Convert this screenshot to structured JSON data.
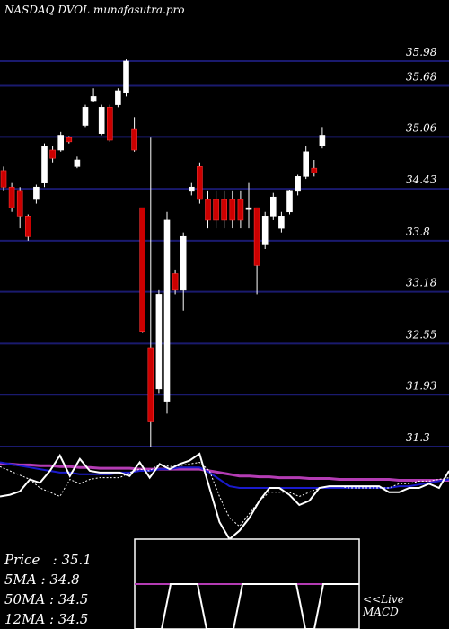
{
  "title": "NASDAQ DVOL munafasutra.pro",
  "colors": {
    "background": "#000000",
    "grid": "#1a1a6e",
    "up_candle": "#ffffff",
    "down_candle": "#cc0000",
    "wick": "#ffffff",
    "ma_short": "#1a1acc",
    "ma_long": "#b43cb4",
    "price_line": "#ffffff",
    "dotted": "#ffffff"
  },
  "chart_data": {
    "type": "candlestick",
    "y_ticks": [
      35.98,
      35.68,
      35.06,
      34.43,
      33.8,
      33.18,
      32.55,
      31.93,
      31.3
    ],
    "ylim": [
      31.3,
      36.0
    ],
    "candles": [
      {
        "o": 34.65,
        "c": 34.45,
        "h": 34.7,
        "l": 34.4
      },
      {
        "o": 34.45,
        "c": 34.2,
        "h": 34.5,
        "l": 34.15
      },
      {
        "o": 34.4,
        "c": 34.1,
        "h": 34.45,
        "l": 33.95
      },
      {
        "o": 34.1,
        "c": 33.85,
        "h": 34.12,
        "l": 33.8
      },
      {
        "o": 34.3,
        "c": 34.45,
        "h": 34.48,
        "l": 34.25
      },
      {
        "o": 34.5,
        "c": 34.95,
        "h": 34.98,
        "l": 34.45
      },
      {
        "o": 34.9,
        "c": 34.8,
        "h": 34.95,
        "l": 34.75
      },
      {
        "o": 34.9,
        "c": 35.08,
        "h": 35.12,
        "l": 34.88
      },
      {
        "o": 35.05,
        "c": 35.0,
        "h": 35.07,
        "l": 34.98
      },
      {
        "o": 34.7,
        "c": 34.78,
        "h": 34.82,
        "l": 34.68
      },
      {
        "o": 35.2,
        "c": 35.42,
        "h": 35.45,
        "l": 35.18
      },
      {
        "o": 35.5,
        "c": 35.55,
        "h": 35.65,
        "l": 35.48
      },
      {
        "o": 35.1,
        "c": 35.42,
        "h": 35.45,
        "l": 35.08
      },
      {
        "o": 35.42,
        "c": 35.02,
        "h": 35.45,
        "l": 35.0
      },
      {
        "o": 35.45,
        "c": 35.62,
        "h": 35.65,
        "l": 35.42
      },
      {
        "o": 35.6,
        "c": 35.98,
        "h": 36.0,
        "l": 35.55
      },
      {
        "o": 35.15,
        "c": 34.9,
        "h": 35.3,
        "l": 34.88
      },
      {
        "o": 34.2,
        "c": 32.7,
        "h": 34.2,
        "l": 32.68
      },
      {
        "o": 32.5,
        "c": 31.6,
        "h": 35.05,
        "l": 31.3
      },
      {
        "o": 32.0,
        "c": 33.15,
        "h": 33.2,
        "l": 31.95
      },
      {
        "o": 31.85,
        "c": 34.05,
        "h": 34.15,
        "l": 31.7
      },
      {
        "o": 33.4,
        "c": 33.2,
        "h": 33.45,
        "l": 33.15
      },
      {
        "o": 33.2,
        "c": 33.85,
        "h": 33.9,
        "l": 32.95
      },
      {
        "o": 34.4,
        "c": 34.45,
        "h": 34.5,
        "l": 34.35
      },
      {
        "o": 34.7,
        "c": 34.3,
        "h": 34.75,
        "l": 34.25
      },
      {
        "o": 34.3,
        "c": 34.05,
        "h": 34.4,
        "l": 33.95
      },
      {
        "o": 34.3,
        "c": 34.05,
        "h": 34.4,
        "l": 33.95
      },
      {
        "o": 34.3,
        "c": 34.05,
        "h": 34.4,
        "l": 33.95
      },
      {
        "o": 34.3,
        "c": 34.05,
        "h": 34.4,
        "l": 33.95
      },
      {
        "o": 34.3,
        "c": 34.05,
        "h": 34.4,
        "l": 33.95
      },
      {
        "o": 34.2,
        "c": 34.2,
        "h": 34.5,
        "l": 33.95
      },
      {
        "o": 34.2,
        "c": 33.5,
        "h": 34.2,
        "l": 33.15
      },
      {
        "o": 33.75,
        "c": 34.1,
        "h": 34.15,
        "l": 33.7
      },
      {
        "o": 34.1,
        "c": 34.33,
        "h": 34.38,
        "l": 34.05
      },
      {
        "o": 33.95,
        "c": 34.1,
        "h": 34.15,
        "l": 33.9
      },
      {
        "o": 34.15,
        "c": 34.4,
        "h": 34.42,
        "l": 34.12
      },
      {
        "o": 34.4,
        "c": 34.58,
        "h": 34.6,
        "l": 34.35
      },
      {
        "o": 34.58,
        "c": 34.88,
        "h": 34.95,
        "l": 34.55
      },
      {
        "o": 34.68,
        "c": 34.62,
        "h": 34.78,
        "l": 34.58
      },
      {
        "o": 34.95,
        "c": 35.08,
        "h": 35.18,
        "l": 34.92
      }
    ],
    "indicator": {
      "price_line": [
        50,
        48,
        44,
        30,
        34,
        20,
        2,
        26,
        6,
        20,
        22,
        22,
        22,
        26,
        10,
        28,
        12,
        18,
        12,
        8,
        0,
        40,
        80,
        100,
        90,
        75,
        55,
        40,
        40,
        48,
        60,
        55,
        40,
        38,
        38,
        38,
        38,
        38,
        38,
        45,
        45,
        40,
        40,
        35,
        40,
        20
      ],
      "dotted": [
        15,
        20,
        25,
        30,
        40,
        45,
        50,
        30,
        35,
        30,
        28,
        28,
        28,
        22,
        18,
        20,
        12,
        15,
        14,
        12,
        10,
        20,
        50,
        75,
        85,
        70,
        55,
        45,
        45,
        45,
        50,
        45,
        40,
        38,
        38,
        40,
        40,
        40,
        40,
        40,
        35,
        35,
        32,
        32,
        30,
        28
      ],
      "ma_short": [
        10,
        12,
        14,
        16,
        18,
        20,
        22,
        22,
        24,
        24,
        24,
        24,
        22,
        22,
        20,
        20,
        18,
        18,
        16,
        16,
        16,
        22,
        30,
        38,
        40,
        40,
        40,
        40,
        40,
        40,
        40,
        40,
        40,
        40,
        40,
        40,
        40,
        40,
        40,
        40,
        38,
        38,
        36,
        34,
        32,
        30
      ],
      "ma_long": [
        12,
        12,
        13,
        13,
        14,
        14,
        15,
        15,
        16,
        16,
        17,
        17,
        17,
        17,
        18,
        18,
        18,
        18,
        18,
        18,
        18,
        20,
        22,
        24,
        26,
        26,
        27,
        27,
        28,
        28,
        28,
        29,
        29,
        29,
        30,
        30,
        30,
        30,
        30,
        30,
        31,
        31,
        31,
        31,
        31,
        31
      ]
    },
    "macd": {
      "line": [
        100,
        100,
        100,
        100,
        0,
        0,
        0,
        0,
        100,
        100,
        100,
        100,
        0,
        0,
        0,
        0,
        0,
        0,
        0,
        100,
        100,
        0,
        0,
        0,
        0,
        0
      ],
      "signal_level": 50
    }
  },
  "stats": {
    "price": "Price   : 35.1",
    "ma5": "5MA : 34.8",
    "ma50": "50MA : 34.5",
    "ma12": "12MA : 34.5"
  },
  "live_label": "<<Live\nMACD"
}
